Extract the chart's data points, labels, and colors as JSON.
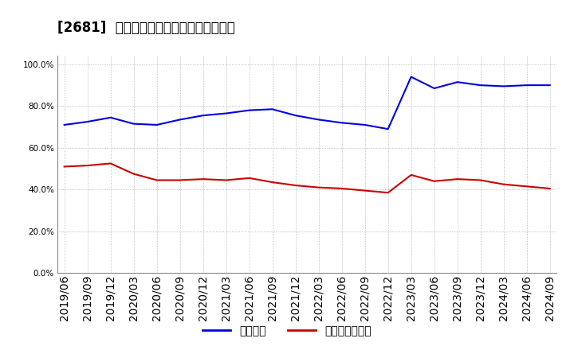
{
  "title": "[2681]  固定比率、固定長期適合率の推移",
  "x_labels": [
    "2019/06",
    "2019/09",
    "2019/12",
    "2020/03",
    "2020/06",
    "2020/09",
    "2020/12",
    "2021/03",
    "2021/06",
    "2021/09",
    "2021/12",
    "2022/03",
    "2022/06",
    "2022/09",
    "2022/12",
    "2023/03",
    "2023/06",
    "2023/09",
    "2023/12",
    "2024/03",
    "2024/06",
    "2024/09"
  ],
  "fixed_ratio": [
    71.0,
    72.5,
    74.5,
    71.5,
    71.0,
    73.5,
    75.5,
    76.5,
    78.0,
    78.5,
    75.5,
    73.5,
    72.0,
    71.0,
    69.0,
    94.0,
    88.5,
    91.5,
    90.0,
    89.5,
    90.0,
    90.0
  ],
  "fixed_long_ratio": [
    51.0,
    51.5,
    52.5,
    47.5,
    44.5,
    44.5,
    45.0,
    44.5,
    45.5,
    43.5,
    42.0,
    41.0,
    40.5,
    39.5,
    38.5,
    47.0,
    44.0,
    45.0,
    44.5,
    42.5,
    41.5,
    40.5
  ],
  "line_color_blue": "#0000dd",
  "line_color_red": "#cc0000",
  "background_color": "#ffffff",
  "plot_bg_color": "#ffffff",
  "grid_color": "#aaaaaa",
  "ylabel_values": [
    0.0,
    20.0,
    40.0,
    60.0,
    80.0,
    100.0
  ],
  "ylim": [
    0,
    104
  ],
  "legend_fixed": "固定比率",
  "legend_fixed_long": "固定長期適合率",
  "title_fontsize": 12,
  "tick_fontsize": 7.5,
  "legend_fontsize": 9
}
